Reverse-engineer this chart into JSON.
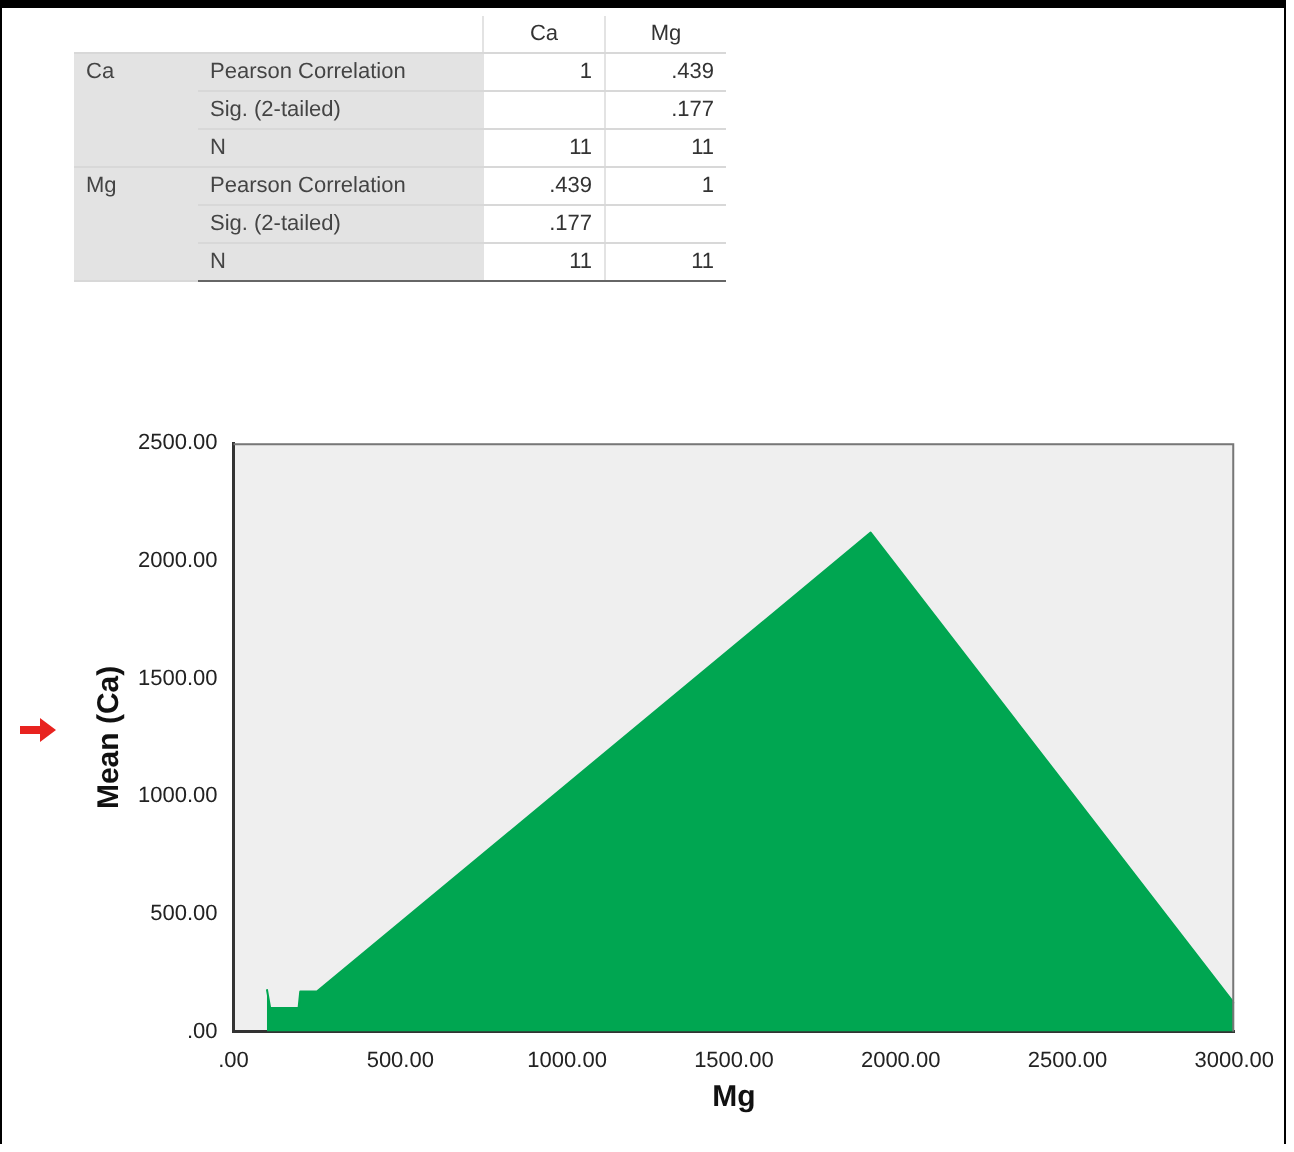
{
  "chart_data": {
    "type": "area",
    "xlabel": "Mg",
    "ylabel": "Mean (Ca)",
    "series": [
      {
        "color": "#00a651",
        "x": [
          100,
          110,
          195,
          200,
          250,
          1910,
          3000
        ],
        "values": [
          180,
          100,
          100,
          170,
          170,
          2120,
          120
        ]
      }
    ],
    "xlim": [
      0,
      3000
    ],
    "xticks": [
      {
        "value": 0,
        "label": ".00"
      },
      {
        "value": 500,
        "label": "500.00"
      },
      {
        "value": 1000,
        "label": "1000.00"
      },
      {
        "value": 1500,
        "label": "1500.00"
      },
      {
        "value": 2000,
        "label": "2000.00"
      },
      {
        "value": 2500,
        "label": "2500.00"
      },
      {
        "value": 3000,
        "label": "3000.00"
      }
    ],
    "ylim": [
      0,
      2500
    ],
    "yticks": [
      {
        "value": 0,
        "label": ".00"
      },
      {
        "value": 500,
        "label": "500.00"
      },
      {
        "value": 1000,
        "label": "1000.00"
      },
      {
        "value": 1500,
        "label": "1500.00"
      },
      {
        "value": 2000,
        "label": "2000.00"
      },
      {
        "value": 2500,
        "label": "2500.00"
      }
    ],
    "grid": false,
    "annotations": [
      "Ca",
      "Mg",
      "Ca",
      "Pearson Correlation",
      "1",
      ".439",
      "Sig. (2-tailed)",
      ".177",
      "N",
      "11",
      "11",
      "Mg",
      "Pearson Correlation",
      ".439",
      "1",
      "Sig. (2-tailed)",
      ".177",
      "N",
      "11",
      "11"
    ]
  }
}
